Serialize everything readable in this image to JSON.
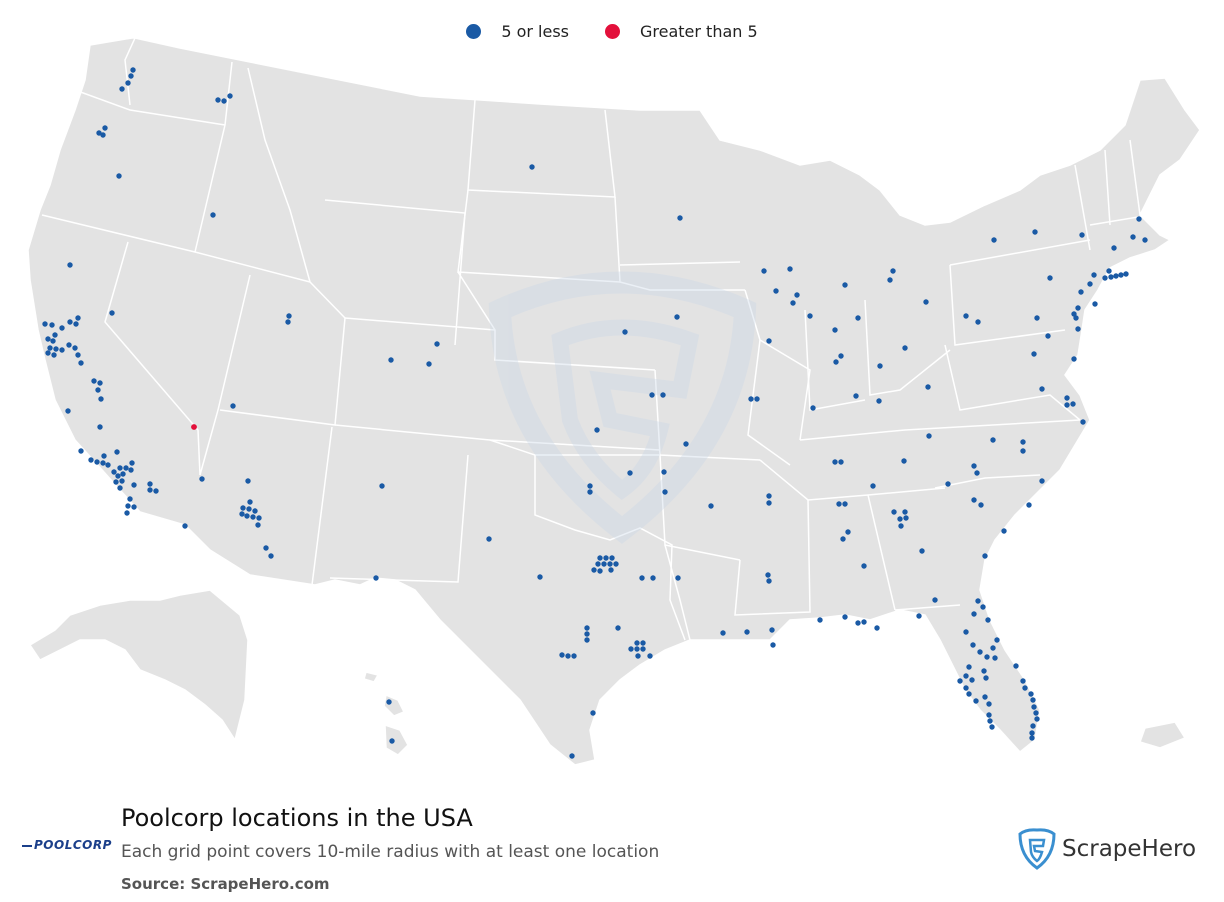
{
  "legend": {
    "items": [
      {
        "label": "5 or less",
        "color": "#1a5aa5"
      },
      {
        "label": "Greater than 5",
        "color": "#e3103b"
      }
    ]
  },
  "colors": {
    "land": "#e3e3e3",
    "border": "#ffffff",
    "dot_low": "#1a5aa5",
    "dot_high": "#e3103b"
  },
  "footer": {
    "title": "Poolcorp locations in the USA",
    "subtitle": "Each grid point covers 10-mile radius with at least one location",
    "source": "Source: ScrapeHero.com",
    "brand_logo": "POOLCORP",
    "vendor_logo": "ScrapeHero"
  }
}
